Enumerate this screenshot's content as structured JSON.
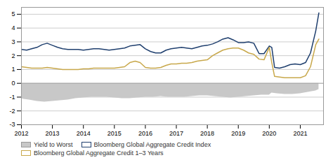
{
  "chart_data": {
    "type": "line",
    "xlim": [
      2012.0,
      2021.75
    ],
    "ylim": [
      -3,
      5.5
    ],
    "xticks": [
      2012,
      2013,
      2014,
      2015,
      2016,
      2017,
      2018,
      2019,
      2020,
      2021
    ],
    "yticks": [
      -3,
      -2,
      -1,
      0,
      1,
      2,
      3,
      4,
      5
    ],
    "grid": "y",
    "legend": "bottom",
    "series": [
      {
        "name": "Yield to Worst",
        "type": "area",
        "color": "#c8c8c8",
        "x": [
          2012.0,
          2012.08,
          2012.25,
          2012.5,
          2012.75,
          2013.0,
          2013.25,
          2013.5,
          2013.75,
          2014.0,
          2014.25,
          2014.5,
          2014.75,
          2015.0,
          2015.25,
          2015.5,
          2015.75,
          2016.0,
          2016.25,
          2016.5,
          2016.75,
          2017.0,
          2017.25,
          2017.5,
          2017.75,
          2018.0,
          2018.25,
          2018.5,
          2018.75,
          2019.0,
          2019.25,
          2019.5,
          2019.75,
          2020.0,
          2020.08,
          2020.25,
          2020.5,
          2020.75,
          2021.0,
          2021.25,
          2021.5,
          2021.6
        ],
        "values": [
          -1.1,
          -1.15,
          -1.2,
          -1.3,
          -1.35,
          -1.3,
          -1.25,
          -1.2,
          -1.1,
          -1.05,
          -1.0,
          -1.0,
          -1.0,
          -1.05,
          -1.1,
          -1.1,
          -1.05,
          -1.0,
          -1.0,
          -0.95,
          -1.0,
          -1.0,
          -1.0,
          -0.95,
          -0.9,
          -0.9,
          -0.95,
          -1.0,
          -1.05,
          -1.0,
          -0.95,
          -0.9,
          -0.85,
          -0.85,
          -0.7,
          -0.75,
          -0.8,
          -0.8,
          -0.75,
          -0.65,
          -0.55,
          -0.45
        ]
      },
      {
        "name": "Bloomberg Global Aggregate Credit Index",
        "type": "line",
        "color": "#1f3f6e",
        "x": [
          2012.0,
          2012.17,
          2012.33,
          2012.5,
          2012.67,
          2012.83,
          2013.0,
          2013.17,
          2013.33,
          2013.5,
          2013.67,
          2013.83,
          2014.0,
          2014.17,
          2014.33,
          2014.5,
          2014.67,
          2014.83,
          2015.0,
          2015.17,
          2015.33,
          2015.5,
          2015.67,
          2015.83,
          2016.0,
          2016.17,
          2016.33,
          2016.5,
          2016.67,
          2016.83,
          2017.0,
          2017.17,
          2017.33,
          2017.5,
          2017.67,
          2017.83,
          2018.0,
          2018.17,
          2018.33,
          2018.5,
          2018.67,
          2018.83,
          2019.0,
          2019.17,
          2019.33,
          2019.5,
          2019.67,
          2019.83,
          2020.0,
          2020.08,
          2020.17,
          2020.33,
          2020.5,
          2020.67,
          2020.83,
          2021.0,
          2021.17,
          2021.33,
          2021.5,
          2021.6
        ],
        "values": [
          2.45,
          2.4,
          2.5,
          2.6,
          2.8,
          2.9,
          2.75,
          2.6,
          2.5,
          2.45,
          2.45,
          2.45,
          2.4,
          2.45,
          2.5,
          2.5,
          2.45,
          2.4,
          2.45,
          2.5,
          2.55,
          2.7,
          2.75,
          2.8,
          2.5,
          2.3,
          2.2,
          2.2,
          2.4,
          2.5,
          2.55,
          2.6,
          2.55,
          2.5,
          2.6,
          2.7,
          2.75,
          2.85,
          3.0,
          3.2,
          3.3,
          3.15,
          2.95,
          2.95,
          3.0,
          2.9,
          2.15,
          2.15,
          2.7,
          2.6,
          1.15,
          1.1,
          1.2,
          1.35,
          1.4,
          1.35,
          1.5,
          2.2,
          3.8,
          5.1
        ]
      },
      {
        "name": "Bloomberg Global Aggregate Credit 1–3 Years",
        "type": "line",
        "color": "#c8a84b",
        "x": [
          2012.0,
          2012.17,
          2012.33,
          2012.5,
          2012.67,
          2012.83,
          2013.0,
          2013.17,
          2013.33,
          2013.5,
          2013.67,
          2013.83,
          2014.0,
          2014.17,
          2014.33,
          2014.5,
          2014.67,
          2014.83,
          2015.0,
          2015.17,
          2015.33,
          2015.5,
          2015.67,
          2015.83,
          2016.0,
          2016.17,
          2016.33,
          2016.5,
          2016.67,
          2016.83,
          2017.0,
          2017.17,
          2017.33,
          2017.5,
          2017.67,
          2017.83,
          2018.0,
          2018.17,
          2018.33,
          2018.5,
          2018.67,
          2018.83,
          2019.0,
          2019.17,
          2019.33,
          2019.5,
          2019.67,
          2019.83,
          2020.0,
          2020.08,
          2020.17,
          2020.33,
          2020.5,
          2020.67,
          2020.83,
          2021.0,
          2021.17,
          2021.33,
          2021.5,
          2021.6
        ],
        "values": [
          1.2,
          1.15,
          1.1,
          1.1,
          1.1,
          1.15,
          1.1,
          1.05,
          1.0,
          1.0,
          1.0,
          1.0,
          1.05,
          1.05,
          1.1,
          1.1,
          1.1,
          1.1,
          1.1,
          1.15,
          1.2,
          1.5,
          1.6,
          1.5,
          1.15,
          1.1,
          1.1,
          1.15,
          1.3,
          1.4,
          1.4,
          1.45,
          1.45,
          1.5,
          1.6,
          1.65,
          1.7,
          2.0,
          2.2,
          2.4,
          2.5,
          2.55,
          2.55,
          2.4,
          2.2,
          2.1,
          1.75,
          1.7,
          2.6,
          1.5,
          0.5,
          0.45,
          0.4,
          0.4,
          0.4,
          0.4,
          0.55,
          1.2,
          2.8,
          3.2
        ]
      }
    ]
  }
}
